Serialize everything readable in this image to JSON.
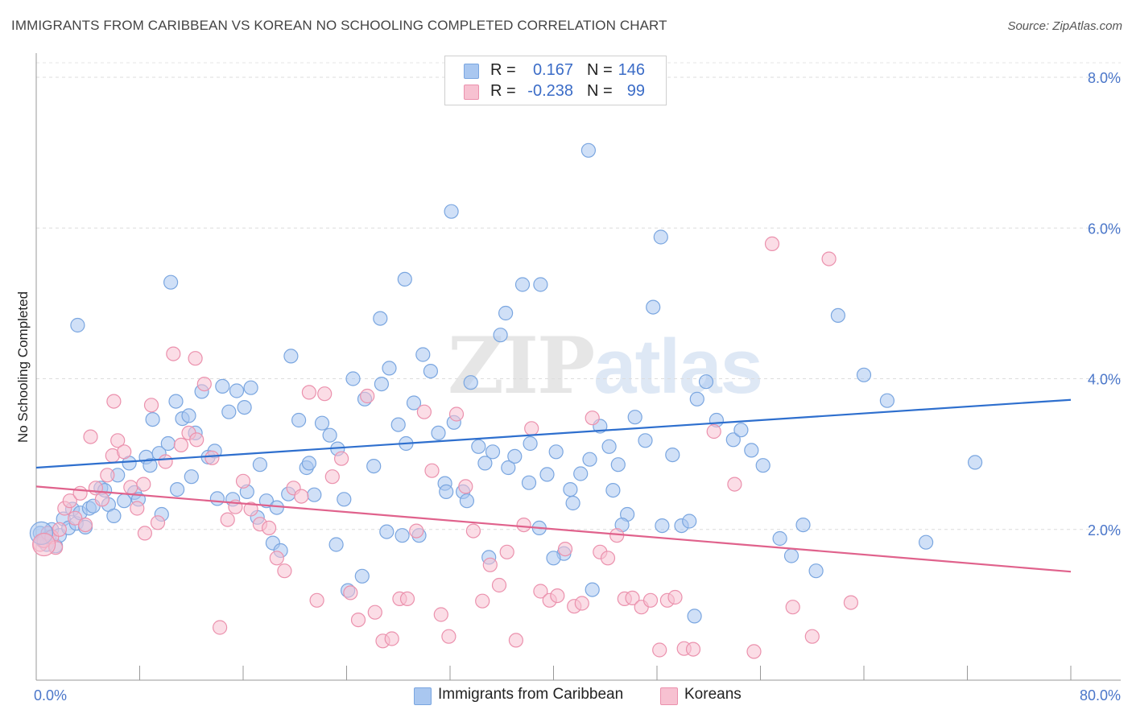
{
  "title": "IMMIGRANTS FROM CARIBBEAN VS KOREAN NO SCHOOLING COMPLETED CORRELATION CHART",
  "source": "Source: ZipAtlas.com",
  "watermark": {
    "zip": "ZIP",
    "atlas": "atlas"
  },
  "legend": {
    "rows": [
      {
        "r_label": "R =",
        "r_value": "0.167",
        "n_label": "N =",
        "n_value": "146",
        "color": "#a9c7f0",
        "border": "#7aa6e0"
      },
      {
        "r_label": "R =",
        "r_value": "-0.238",
        "n_label": "N =",
        "n_value": "99",
        "color": "#f7c1d1",
        "border": "#eb91ad"
      }
    ]
  },
  "bottom_legend": [
    {
      "label": "Immigrants from Caribbean",
      "color": "#a9c7f0",
      "border": "#7aa6e0"
    },
    {
      "label": "Koreans",
      "color": "#f7c1d1",
      "border": "#eb91ad"
    }
  ],
  "chart_data": {
    "type": "scatter",
    "title": "IMMIGRANTS FROM CARIBBEAN VS KOREAN NO SCHOOLING COMPLETED CORRELATION CHART",
    "xlabel": "",
    "ylabel": "No Schooling Completed",
    "xlim": [
      0,
      80
    ],
    "ylim": [
      0,
      8
    ],
    "x_tick_labels": [
      "0.0%",
      "80.0%"
    ],
    "y_tick_values": [
      2,
      4,
      6,
      8
    ],
    "y_tick_labels": [
      "2.0%",
      "4.0%",
      "6.0%",
      "8.0%"
    ],
    "grid": true,
    "legend_position": "top-center",
    "series": [
      {
        "name": "Immigrants from Caribbean",
        "color": "#7aa6e0",
        "fill": "#a9c7f0",
        "line_color": "#2e6fce",
        "trend": {
          "x": [
            0,
            80
          ],
          "y": [
            2.82,
            3.72
          ]
        },
        "points": [
          [
            0.3,
            1.95
          ],
          [
            0.5,
            1.85
          ],
          [
            0.8,
            1.8
          ],
          [
            1.0,
            1.9
          ],
          [
            1.2,
            2.0
          ],
          [
            1.5,
            1.78
          ],
          [
            1.8,
            1.92
          ],
          [
            2.1,
            2.14
          ],
          [
            2.5,
            2.02
          ],
          [
            2.8,
            2.27
          ],
          [
            3.1,
            2.08
          ],
          [
            3.4,
            2.22
          ],
          [
            3.8,
            2.03
          ],
          [
            4.1,
            2.28
          ],
          [
            4.4,
            2.31
          ],
          [
            5.0,
            2.55
          ],
          [
            5.3,
            2.52
          ],
          [
            5.6,
            2.33
          ],
          [
            6.0,
            2.18
          ],
          [
            6.3,
            2.72
          ],
          [
            6.8,
            2.38
          ],
          [
            7.2,
            2.88
          ],
          [
            7.6,
            2.49
          ],
          [
            7.9,
            2.4
          ],
          [
            8.5,
            2.96
          ],
          [
            9.0,
            3.46
          ],
          [
            9.5,
            3.01
          ],
          [
            10.2,
            3.14
          ],
          [
            10.8,
            3.7
          ],
          [
            11.3,
            3.47
          ],
          [
            11.8,
            3.51
          ],
          [
            12.3,
            3.28
          ],
          [
            12.8,
            3.83
          ],
          [
            13.3,
            2.96
          ],
          [
            13.8,
            3.04
          ],
          [
            14.4,
            3.9
          ],
          [
            14.9,
            3.56
          ],
          [
            15.5,
            3.84
          ],
          [
            16.1,
            3.62
          ],
          [
            16.6,
            3.88
          ],
          [
            17.3,
            2.86
          ],
          [
            17.8,
            2.38
          ],
          [
            18.3,
            1.82
          ],
          [
            18.9,
            1.72
          ],
          [
            19.7,
            4.3
          ],
          [
            20.3,
            3.45
          ],
          [
            20.9,
            2.82
          ],
          [
            21.5,
            2.46
          ],
          [
            22.1,
            3.41
          ],
          [
            22.7,
            3.25
          ],
          [
            23.3,
            3.07
          ],
          [
            23.8,
            2.4
          ],
          [
            24.5,
            4.0
          ],
          [
            25.4,
            3.73
          ],
          [
            26.1,
            2.84
          ],
          [
            26.7,
            3.93
          ],
          [
            27.3,
            4.14
          ],
          [
            28.0,
            3.39
          ],
          [
            28.6,
            3.14
          ],
          [
            29.2,
            3.68
          ],
          [
            29.9,
            4.32
          ],
          [
            30.5,
            4.1
          ],
          [
            31.1,
            3.28
          ],
          [
            31.6,
            2.61
          ],
          [
            32.3,
            3.42
          ],
          [
            33.0,
            2.5
          ],
          [
            33.6,
            3.95
          ],
          [
            34.2,
            3.1
          ],
          [
            34.7,
            2.88
          ],
          [
            35.3,
            3.03
          ],
          [
            35.9,
            4.58
          ],
          [
            36.5,
            2.82
          ],
          [
            37.0,
            2.97
          ],
          [
            37.6,
            5.25
          ],
          [
            38.2,
            3.14
          ],
          [
            38.9,
            2.02
          ],
          [
            39.5,
            2.73
          ],
          [
            40.2,
            3.03
          ],
          [
            40.8,
            1.68
          ],
          [
            41.5,
            2.35
          ],
          [
            42.1,
            2.74
          ],
          [
            42.8,
            2.93
          ],
          [
            43.6,
            3.37
          ],
          [
            44.3,
            3.1
          ],
          [
            45.0,
            2.86
          ],
          [
            45.7,
            2.2
          ],
          [
            46.3,
            3.49
          ],
          [
            47.1,
            3.18
          ],
          [
            47.7,
            4.95
          ],
          [
            48.4,
            2.05
          ],
          [
            49.2,
            2.99
          ],
          [
            49.9,
            2.05
          ],
          [
            50.5,
            2.11
          ],
          [
            51.1,
            3.73
          ],
          [
            51.8,
            3.96
          ],
          [
            3.2,
            4.71
          ],
          [
            10.4,
            5.28
          ],
          [
            26.6,
            4.8
          ],
          [
            28.5,
            5.32
          ],
          [
            32.1,
            6.22
          ],
          [
            36.3,
            4.87
          ],
          [
            39.0,
            5.25
          ],
          [
            42.7,
            7.03
          ],
          [
            48.3,
            5.88
          ],
          [
            62.0,
            4.84
          ],
          [
            64.0,
            4.05
          ],
          [
            65.8,
            3.71
          ],
          [
            72.6,
            2.89
          ],
          [
            68.8,
            1.83
          ],
          [
            59.3,
            2.06
          ],
          [
            58.4,
            1.65
          ],
          [
            57.5,
            1.88
          ],
          [
            52.6,
            3.45
          ],
          [
            53.9,
            3.19
          ],
          [
            54.5,
            3.32
          ],
          [
            55.3,
            3.05
          ],
          [
            56.2,
            2.85
          ],
          [
            60.3,
            1.45
          ],
          [
            50.9,
            0.85
          ],
          [
            45.3,
            2.06
          ],
          [
            44.6,
            2.52
          ],
          [
            43.0,
            1.2
          ],
          [
            41.3,
            2.53
          ],
          [
            40.0,
            1.62
          ],
          [
            38.1,
            2.62
          ],
          [
            35.0,
            1.63
          ],
          [
            33.3,
            2.38
          ],
          [
            31.7,
            2.5
          ],
          [
            29.6,
            1.92
          ],
          [
            28.3,
            1.92
          ],
          [
            27.1,
            1.97
          ],
          [
            25.2,
            1.38
          ],
          [
            24.1,
            1.19
          ],
          [
            23.2,
            1.8
          ],
          [
            21.1,
            2.88
          ],
          [
            19.5,
            2.47
          ],
          [
            18.6,
            2.29
          ],
          [
            17.1,
            2.16
          ],
          [
            16.3,
            2.5
          ],
          [
            15.2,
            2.4
          ],
          [
            14.0,
            2.41
          ],
          [
            12.0,
            2.7
          ],
          [
            10.9,
            2.53
          ],
          [
            9.7,
            2.2
          ],
          [
            8.8,
            2.85
          ]
        ]
      },
      {
        "name": "Koreans",
        "color": "#eb91ad",
        "fill": "#f7c1d1",
        "line_color": "#e0628c",
        "trend": {
          "x": [
            0,
            80
          ],
          "y": [
            2.57,
            1.44
          ]
        },
        "points": [
          [
            0.3,
            1.8
          ],
          [
            0.6,
            1.85
          ],
          [
            0.9,
            1.95
          ],
          [
            1.2,
            1.9
          ],
          [
            1.5,
            1.76
          ],
          [
            1.8,
            2.0
          ],
          [
            2.2,
            2.28
          ],
          [
            2.6,
            2.38
          ],
          [
            3.0,
            2.15
          ],
          [
            3.4,
            2.48
          ],
          [
            3.8,
            2.06
          ],
          [
            4.2,
            3.23
          ],
          [
            4.6,
            2.55
          ],
          [
            5.1,
            2.4
          ],
          [
            5.5,
            2.72
          ],
          [
            5.9,
            2.98
          ],
          [
            6.3,
            3.18
          ],
          [
            6.8,
            3.03
          ],
          [
            7.3,
            2.56
          ],
          [
            7.8,
            2.28
          ],
          [
            8.3,
            2.6
          ],
          [
            8.9,
            3.65
          ],
          [
            9.4,
            2.09
          ],
          [
            10.0,
            2.9
          ],
          [
            10.6,
            4.33
          ],
          [
            11.2,
            3.12
          ],
          [
            11.8,
            3.28
          ],
          [
            12.4,
            3.19
          ],
          [
            13.0,
            3.93
          ],
          [
            13.6,
            2.95
          ],
          [
            14.2,
            0.7
          ],
          [
            14.8,
            2.13
          ],
          [
            15.4,
            2.3
          ],
          [
            16.0,
            2.64
          ],
          [
            16.6,
            2.27
          ],
          [
            17.3,
            2.07
          ],
          [
            18.0,
            2.02
          ],
          [
            18.6,
            1.62
          ],
          [
            19.2,
            1.45
          ],
          [
            19.9,
            2.55
          ],
          [
            20.5,
            2.44
          ],
          [
            21.1,
            3.82
          ],
          [
            21.7,
            1.06
          ],
          [
            22.3,
            3.8
          ],
          [
            22.9,
            2.7
          ],
          [
            23.6,
            2.94
          ],
          [
            24.3,
            1.16
          ],
          [
            24.9,
            0.8
          ],
          [
            25.6,
            3.77
          ],
          [
            26.2,
            0.9
          ],
          [
            26.8,
            0.52
          ],
          [
            27.5,
            0.55
          ],
          [
            28.1,
            1.08
          ],
          [
            28.7,
            1.08
          ],
          [
            29.4,
            1.98
          ],
          [
            30.0,
            3.56
          ],
          [
            30.6,
            2.78
          ],
          [
            31.3,
            0.87
          ],
          [
            31.9,
            0.58
          ],
          [
            32.5,
            3.53
          ],
          [
            33.2,
            2.57
          ],
          [
            33.8,
            1.98
          ],
          [
            34.5,
            1.05
          ],
          [
            35.1,
            1.53
          ],
          [
            35.8,
            1.26
          ],
          [
            36.4,
            1.7
          ],
          [
            37.1,
            0.53
          ],
          [
            37.7,
            2.06
          ],
          [
            38.3,
            3.34
          ],
          [
            39.0,
            1.18
          ],
          [
            39.7,
            1.06
          ],
          [
            40.3,
            1.12
          ],
          [
            40.9,
            1.74
          ],
          [
            41.6,
            0.98
          ],
          [
            42.2,
            1.02
          ],
          [
            43.0,
            3.48
          ],
          [
            43.6,
            1.7
          ],
          [
            44.2,
            1.62
          ],
          [
            44.9,
            1.92
          ],
          [
            45.5,
            1.08
          ],
          [
            46.1,
            1.09
          ],
          [
            46.8,
            0.97
          ],
          [
            47.5,
            1.06
          ],
          [
            48.2,
            0.4
          ],
          [
            48.8,
            1.06
          ],
          [
            49.4,
            1.1
          ],
          [
            50.1,
            0.42
          ],
          [
            50.8,
            0.41
          ],
          [
            52.4,
            3.3
          ],
          [
            54.0,
            2.6
          ],
          [
            55.5,
            0.38
          ],
          [
            56.9,
            5.79
          ],
          [
            58.5,
            0.97
          ],
          [
            60.0,
            0.58
          ],
          [
            61.3,
            5.59
          ],
          [
            63.0,
            1.03
          ],
          [
            6.0,
            3.7
          ],
          [
            12.3,
            4.27
          ],
          [
            8.4,
            1.95
          ]
        ]
      }
    ]
  }
}
